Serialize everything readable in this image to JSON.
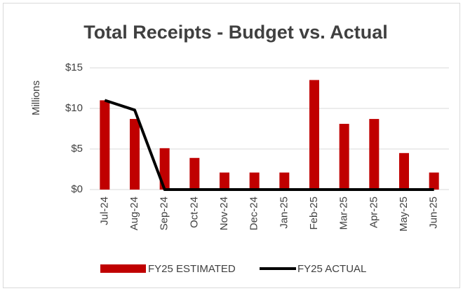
{
  "chart_data": {
    "type": "bar",
    "title": "Total Receipts - Budget vs. Actual",
    "y_label": "Millions",
    "categories": [
      "Jul-24",
      "Aug-24",
      "Sep-24",
      "Oct-24",
      "Nov-24",
      "Dec-24",
      "Jan-25",
      "Feb-25",
      "Mar-25",
      "Apr-25",
      "May-25",
      "Jun-25"
    ],
    "series": [
      {
        "name": "FY25 ESTIMATED",
        "type": "bar",
        "color": "#c00000",
        "values": [
          11,
          8.7,
          5.1,
          3.9,
          2.1,
          2.1,
          2.1,
          13.5,
          8.1,
          8.7,
          4.5,
          2.1
        ]
      },
      {
        "name": "FY25 ACTUAL",
        "type": "line",
        "color": "#000000",
        "values": [
          11,
          9.8,
          0,
          0,
          0,
          0,
          0,
          0,
          0,
          0,
          0,
          0
        ]
      }
    ],
    "ylim": [
      0,
      15
    ],
    "yticks": [
      {
        "value": 0,
        "label": "$0"
      },
      {
        "value": 5,
        "label": "$5"
      },
      {
        "value": 10,
        "label": "$10"
      },
      {
        "value": 15,
        "label": "$15"
      }
    ],
    "grid": true,
    "legend": "bottom"
  }
}
